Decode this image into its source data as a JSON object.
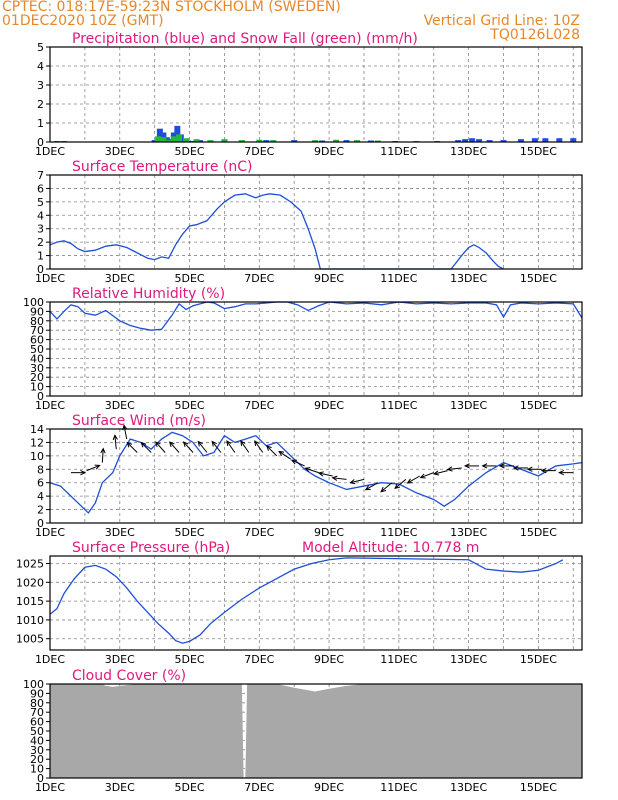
{
  "header": {
    "left_line1": "CPTEC:    018:17E-59:23N   STOCKHOLM (SWEDEN)",
    "left_line2": "01DEC2020 10Z (GMT)",
    "right_line2": "Vertical Grid Line: 10Z",
    "right_line3": "TQ0126L028"
  },
  "colors": {
    "header": "#e8872a",
    "title": "#e0197f",
    "series": "#1f4fd9",
    "snow": "#22b83a",
    "cloud": "#a8a8a8"
  },
  "x_tick_labels": [
    "1DEC",
    "3DEC",
    "5DEC",
    "7DEC",
    "9DEC",
    "11DEC",
    "13DEC",
    "15DEC"
  ],
  "chart_data": [
    {
      "type": "bar",
      "title": "Precipitation (blue) and Snow Fall (green) (mm/h)",
      "xlabel": "",
      "ylabel": "",
      "xlim": [
        0,
        15.25
      ],
      "ylim": [
        0,
        5
      ],
      "yticks": [
        0,
        1,
        2,
        3,
        4,
        5
      ],
      "series": [
        {
          "name": "Precipitation (blue)",
          "color": "#1f4fd9",
          "x": [
            0.2,
            0.4,
            3.0,
            3.15,
            3.25,
            3.35,
            3.45,
            3.55,
            3.65,
            3.75,
            3.85,
            3.95,
            4.1,
            4.3,
            4.6,
            5.0,
            5.5,
            6.2,
            7.0,
            7.8,
            8.5,
            9.2,
            9.9,
            10.5,
            11.1,
            11.7,
            11.9,
            12.1,
            12.3,
            12.6,
            13.0,
            13.5,
            13.9,
            14.2,
            14.6,
            15.0
          ],
          "values": [
            0.05,
            0.05,
            0.1,
            0.7,
            0.5,
            0.25,
            0.15,
            0.5,
            0.85,
            0.4,
            0.15,
            0.08,
            0.05,
            0.1,
            0.08,
            0.1,
            0.08,
            0.1,
            0.1,
            0.08,
            0.1,
            0.08,
            0.05,
            0.05,
            0.05,
            0.1,
            0.15,
            0.2,
            0.15,
            0.1,
            0.1,
            0.15,
            0.2,
            0.2,
            0.2,
            0.2
          ]
        },
        {
          "name": "Snow Fall (green)",
          "color": "#22b83a",
          "x": [
            3.1,
            3.25,
            3.4,
            3.55,
            3.7,
            3.9,
            4.2,
            4.6,
            5.0,
            5.5,
            6.0,
            6.4,
            7.6,
            8.2,
            8.8,
            9.4
          ],
          "values": [
            0.3,
            0.25,
            0.1,
            0.3,
            0.4,
            0.2,
            0.15,
            0.1,
            0.15,
            0.1,
            0.12,
            0.1,
            0.1,
            0.12,
            0.1,
            0.08
          ]
        }
      ]
    },
    {
      "type": "line",
      "title": "Surface Temperature (nC)",
      "xlabel": "",
      "ylabel": "",
      "xlim": [
        0,
        15.25
      ],
      "ylim": [
        0,
        7
      ],
      "yticks": [
        0,
        1,
        2,
        3,
        4,
        5,
        6,
        7
      ],
      "series": [
        {
          "x": [
            0,
            0.2,
            0.4,
            0.6,
            0.8,
            1.0,
            1.3,
            1.6,
            1.9,
            2.2,
            2.5,
            2.8,
            3.0,
            3.2,
            3.4,
            3.6,
            3.8,
            4.0,
            4.2,
            4.5,
            4.8,
            5.0,
            5.3,
            5.6,
            5.9,
            6.1,
            6.3,
            6.6,
            6.9,
            7.2,
            7.4,
            7.6,
            7.75,
            11.5,
            11.8,
            12.0,
            12.15,
            12.3,
            12.5,
            12.7,
            12.85,
            13.0
          ],
          "values": [
            1.8,
            2.0,
            2.1,
            1.9,
            1.5,
            1.3,
            1.4,
            1.7,
            1.8,
            1.6,
            1.2,
            0.8,
            0.7,
            0.9,
            0.8,
            1.8,
            2.6,
            3.2,
            3.3,
            3.6,
            4.5,
            5.0,
            5.5,
            5.6,
            5.3,
            5.5,
            5.6,
            5.5,
            5.0,
            4.3,
            3.0,
            1.5,
            0,
            0,
            1.0,
            1.6,
            1.8,
            1.6,
            1.2,
            0.6,
            0.2,
            0
          ]
        }
      ]
    },
    {
      "type": "line",
      "title": "Relative Humidity (%)",
      "xlabel": "",
      "ylabel": "",
      "xlim": [
        0,
        15.25
      ],
      "ylim": [
        0,
        100
      ],
      "yticks": [
        0,
        10,
        20,
        30,
        40,
        50,
        60,
        70,
        80,
        90,
        100
      ],
      "series": [
        {
          "x": [
            0,
            0.2,
            0.4,
            0.6,
            0.8,
            1.0,
            1.3,
            1.6,
            2.0,
            2.3,
            2.6,
            2.9,
            3.2,
            3.5,
            3.7,
            3.9,
            4.1,
            4.3,
            4.5,
            4.7,
            5.0,
            5.3,
            5.6,
            5.9,
            6.2,
            6.5,
            6.8,
            7.1,
            7.4,
            7.7,
            8.0,
            8.5,
            9.0,
            9.5,
            10.0,
            10.5,
            11.0,
            11.5,
            12.0,
            12.5,
            12.8,
            13.0,
            13.2,
            13.5,
            14.0,
            14.5,
            15.0,
            15.25
          ],
          "values": [
            90,
            82,
            90,
            97,
            95,
            88,
            86,
            91,
            80,
            75,
            72,
            70,
            71,
            86,
            98,
            92,
            96,
            98,
            100,
            99,
            93,
            95,
            98,
            98,
            99,
            100,
            100,
            97,
            91,
            96,
            100,
            98,
            99,
            97,
            100,
            98,
            99,
            98,
            99,
            99,
            97,
            84,
            97,
            99,
            98,
            99,
            98,
            83
          ]
        }
      ]
    },
    {
      "type": "line",
      "title": "Surface Wind (m/s)",
      "xlabel": "",
      "ylabel": "",
      "xlim": [
        0,
        15.25
      ],
      "ylim": [
        0,
        14
      ],
      "yticks": [
        0,
        2,
        4,
        6,
        8,
        10,
        12,
        14
      ],
      "series": [
        {
          "x": [
            0,
            0.3,
            0.6,
            0.9,
            1.1,
            1.3,
            1.5,
            1.8,
            2.0,
            2.3,
            2.6,
            2.9,
            3.2,
            3.5,
            3.8,
            4.1,
            4.4,
            4.7,
            5.0,
            5.3,
            5.6,
            5.9,
            6.2,
            6.5,
            6.8,
            7.0,
            7.3,
            7.6,
            8.0,
            8.5,
            9.0,
            9.5,
            10.0,
            10.5,
            11.0,
            11.3,
            11.6,
            12.0,
            12.5,
            13.0,
            13.5,
            14.0,
            14.5,
            15.0,
            15.25
          ],
          "values": [
            6.0,
            5.5,
            4.0,
            2.5,
            1.5,
            3.0,
            6.0,
            7.5,
            10.0,
            12.5,
            12.0,
            11.0,
            12.5,
            13.5,
            13.0,
            12.0,
            10.0,
            10.5,
            13.0,
            12.0,
            12.5,
            13.0,
            11.5,
            12.0,
            10.5,
            9.5,
            8.0,
            7.0,
            6.0,
            5.0,
            5.5,
            6.0,
            5.8,
            4.5,
            3.5,
            2.5,
            3.5,
            5.5,
            7.5,
            9.0,
            8.0,
            7.0,
            8.5,
            8.8,
            9.0
          ]
        }
      ]
    },
    {
      "type": "line",
      "title": "Surface Pressure (hPa)",
      "subtitle": "Model Altitude: 10.778  m",
      "xlabel": "",
      "ylabel": "",
      "xlim": [
        0,
        15.25
      ],
      "ylim": [
        1002,
        1027
      ],
      "yticks": [
        1005,
        1010,
        1015,
        1020,
        1025
      ],
      "series": [
        {
          "x": [
            0,
            0.2,
            0.4,
            0.7,
            1.0,
            1.3,
            1.6,
            1.9,
            2.2,
            2.5,
            2.8,
            3.1,
            3.4,
            3.6,
            3.8,
            4.0,
            4.3,
            4.6,
            5.0,
            5.5,
            6.0,
            6.5,
            7.0,
            7.5,
            8.0,
            8.5,
            12.0,
            12.5,
            13.0,
            13.5,
            14.0,
            14.5,
            14.7
          ],
          "values": [
            1011.5,
            1013,
            1017,
            1021,
            1024,
            1024.5,
            1023.5,
            1021.5,
            1018.5,
            1015,
            1012,
            1009,
            1006.5,
            1004.5,
            1003.8,
            1004.3,
            1006,
            1009,
            1012,
            1015.5,
            1018.5,
            1021,
            1023.5,
            1025,
            1026,
            1026.5,
            1026,
            1023.5,
            1023,
            1022.7,
            1023.2,
            1025,
            1026
          ]
        }
      ]
    },
    {
      "type": "area",
      "title": "Cloud Cover (%)",
      "xlabel": "",
      "ylabel": "",
      "xlim": [
        0,
        15.25
      ],
      "ylim": [
        0,
        100
      ],
      "yticks": [
        0,
        10,
        20,
        30,
        40,
        50,
        60,
        70,
        80,
        90,
        100
      ],
      "series": [
        {
          "x": [
            0,
            0.5,
            1.0,
            1.5,
            1.6,
            1.8,
            2.0,
            2.5,
            3.0,
            3.5,
            4.0,
            4.5,
            5.0,
            5.5,
            5.55,
            5.6,
            5.65,
            6.0,
            6.5,
            7.0,
            7.3,
            7.6,
            8.0,
            8.5,
            9.0,
            10.0,
            11.0,
            12.0,
            13.0,
            14.0,
            15.0,
            15.25
          ],
          "values": [
            100,
            100,
            100,
            100,
            98,
            97,
            98,
            100,
            100,
            100,
            100,
            100,
            100,
            100,
            0,
            0,
            100,
            100,
            100,
            96,
            94,
            92,
            95,
            98,
            100,
            100,
            100,
            100,
            100,
            100,
            100,
            100
          ]
        }
      ]
    }
  ]
}
